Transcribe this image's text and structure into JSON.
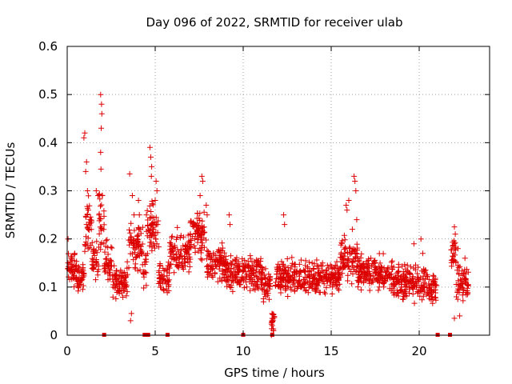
{
  "chart_data": {
    "type": "scatter",
    "title": "Day 096 of 2022, SRMTID for receiver ulab",
    "xlabel": "GPS time / hours",
    "ylabel": "SRMTID / TECUs",
    "xlim": [
      0,
      24
    ],
    "ylim": [
      0,
      0.6
    ],
    "x_ticks": [
      0,
      5,
      10,
      15,
      20
    ],
    "x_tick_labels": [
      "0",
      "5",
      "10",
      "15",
      "20"
    ],
    "y_ticks": [
      0,
      0.1,
      0.2,
      0.3,
      0.4,
      0.5,
      0.6
    ],
    "y_tick_labels": [
      "0",
      "0.1",
      "0.2",
      "0.3",
      "0.4",
      "0.5",
      "0.6"
    ],
    "grid": true,
    "marker": "+",
    "marker_color": "#dd0000",
    "series": [
      {
        "name": "SRMTID",
        "segments": [
          {
            "from": 0.0,
            "to": 0.5,
            "base": 0.14,
            "amp": 0.05
          },
          {
            "from": 0.5,
            "to": 1.0,
            "base": 0.12,
            "amp": 0.05
          },
          {
            "from": 1.0,
            "to": 1.4,
            "base": 0.22,
            "amp": 0.09
          },
          {
            "from": 1.4,
            "to": 1.8,
            "base": 0.16,
            "amp": 0.06
          },
          {
            "from": 1.8,
            "to": 2.1,
            "base": 0.24,
            "amp": 0.08
          },
          {
            "from": 2.1,
            "to": 2.6,
            "base": 0.15,
            "amp": 0.06
          },
          {
            "from": 2.6,
            "to": 3.5,
            "base": 0.11,
            "amp": 0.05
          },
          {
            "from": 3.5,
            "to": 4.3,
            "base": 0.19,
            "amp": 0.07
          },
          {
            "from": 4.3,
            "to": 4.5,
            "base": 0.13,
            "amp": 0.06
          },
          {
            "from": 4.5,
            "to": 5.2,
            "base": 0.22,
            "amp": 0.08
          },
          {
            "from": 5.2,
            "to": 5.8,
            "base": 0.12,
            "amp": 0.05
          },
          {
            "from": 5.8,
            "to": 7.0,
            "base": 0.17,
            "amp": 0.06
          },
          {
            "from": 7.0,
            "to": 7.9,
            "base": 0.21,
            "amp": 0.07
          },
          {
            "from": 7.9,
            "to": 9.0,
            "base": 0.15,
            "amp": 0.05
          },
          {
            "from": 9.0,
            "to": 10.0,
            "base": 0.13,
            "amp": 0.05
          },
          {
            "from": 10.0,
            "to": 11.0,
            "base": 0.13,
            "amp": 0.05
          },
          {
            "from": 11.0,
            "to": 11.6,
            "base": 0.11,
            "amp": 0.05
          },
          {
            "from": 11.6,
            "to": 11.8,
            "base": 0.03,
            "amp": 0.03
          },
          {
            "from": 11.8,
            "to": 13.5,
            "base": 0.12,
            "amp": 0.05
          },
          {
            "from": 13.5,
            "to": 15.5,
            "base": 0.12,
            "amp": 0.05
          },
          {
            "from": 15.5,
            "to": 16.5,
            "base": 0.16,
            "amp": 0.06
          },
          {
            "from": 16.5,
            "to": 18.5,
            "base": 0.13,
            "amp": 0.05
          },
          {
            "from": 18.5,
            "to": 20.5,
            "base": 0.11,
            "amp": 0.05
          },
          {
            "from": 20.5,
            "to": 21.0,
            "base": 0.1,
            "amp": 0.05
          },
          {
            "from": 21.8,
            "to": 22.1,
            "base": 0.17,
            "amp": 0.05
          },
          {
            "from": 22.1,
            "to": 22.8,
            "base": 0.11,
            "amp": 0.05
          }
        ],
        "spikes": [
          [
            0.05,
            0.2
          ],
          [
            0.95,
            0.41
          ],
          [
            1.0,
            0.42
          ],
          [
            1.1,
            0.36
          ],
          [
            1.05,
            0.34
          ],
          [
            1.15,
            0.3
          ],
          [
            1.2,
            0.26
          ],
          [
            1.65,
            0.3
          ],
          [
            1.75,
            0.29
          ],
          [
            1.9,
            0.5
          ],
          [
            1.95,
            0.48
          ],
          [
            1.97,
            0.46
          ],
          [
            1.93,
            0.43
          ],
          [
            1.9,
            0.38
          ],
          [
            1.92,
            0.345
          ],
          [
            2.0,
            0.29
          ],
          [
            3.55,
            0.335
          ],
          [
            3.7,
            0.29
          ],
          [
            3.8,
            0.25
          ],
          [
            4.05,
            0.28
          ],
          [
            4.1,
            0.25
          ],
          [
            3.65,
            0.045
          ],
          [
            3.6,
            0.03
          ],
          [
            4.7,
            0.39
          ],
          [
            4.75,
            0.37
          ],
          [
            4.8,
            0.35
          ],
          [
            4.78,
            0.33
          ],
          [
            5.05,
            0.32
          ],
          [
            5.1,
            0.3
          ],
          [
            5.0,
            0.28
          ],
          [
            7.65,
            0.33
          ],
          [
            7.7,
            0.32
          ],
          [
            7.55,
            0.29
          ],
          [
            7.9,
            0.27
          ],
          [
            7.95,
            0.25
          ],
          [
            9.2,
            0.25
          ],
          [
            9.25,
            0.23
          ],
          [
            11.6,
            0.0
          ],
          [
            11.65,
            0.02
          ],
          [
            11.7,
            0.01
          ],
          [
            12.3,
            0.25
          ],
          [
            12.35,
            0.23
          ],
          [
            15.85,
            0.27
          ],
          [
            15.9,
            0.26
          ],
          [
            16.0,
            0.28
          ],
          [
            16.3,
            0.33
          ],
          [
            16.35,
            0.32
          ],
          [
            16.4,
            0.3
          ],
          [
            16.45,
            0.24
          ],
          [
            16.2,
            0.22
          ],
          [
            19.7,
            0.19
          ],
          [
            20.1,
            0.2
          ],
          [
            20.2,
            0.17
          ],
          [
            22.0,
            0.225
          ],
          [
            22.05,
            0.21
          ],
          [
            22.2,
            0.18
          ],
          [
            22.0,
            0.035
          ],
          [
            22.3,
            0.04
          ],
          [
            22.6,
            0.16
          ]
        ],
        "zero_markers": [
          2.1,
          4.4,
          4.5,
          4.6,
          5.7,
          10.0,
          11.65,
          21.05,
          21.75
        ]
      }
    ]
  }
}
